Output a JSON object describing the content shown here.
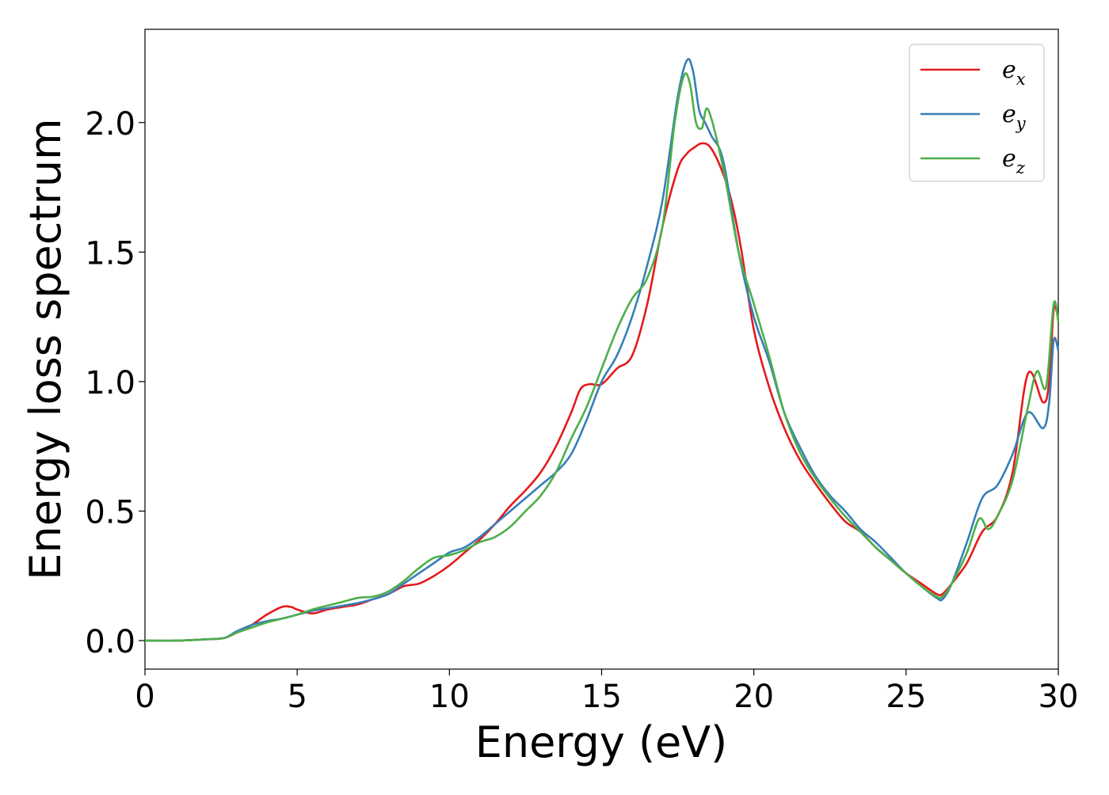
{
  "chart_data": {
    "type": "line",
    "title": "",
    "xlabel": "Energy (eV)",
    "ylabel": "Energy loss spectrum",
    "xlim": [
      0,
      30
    ],
    "ylim": [
      -0.11,
      2.36
    ],
    "x_ticks": [
      "0",
      "5",
      "10",
      "15",
      "20",
      "25",
      "30"
    ],
    "y_ticks": [
      "0.0",
      "0.5",
      "1.0",
      "1.5",
      "2.0"
    ],
    "grid": false,
    "legend_position": "top-right",
    "series": [
      {
        "name": "e_x",
        "label_base": "e",
        "label_sub": "x",
        "color": "#e41a1c",
        "x": [
          0,
          1,
          2,
          2.6,
          3,
          3.5,
          4,
          4.5,
          4.8,
          5,
          5.5,
          6,
          6.5,
          7,
          7.5,
          8,
          8.5,
          9,
          9.5,
          10,
          10.5,
          11,
          11.5,
          12,
          12.5,
          13,
          13.5,
          14,
          14.3,
          14.6,
          15,
          15.5,
          16,
          16.5,
          17,
          17.5,
          17.8,
          18,
          18.3,
          18.6,
          19,
          19.3,
          19.6,
          20,
          20.5,
          21,
          21.5,
          22,
          22.5,
          23,
          23.5,
          24,
          24.5,
          25,
          25.5,
          26,
          26.2,
          26.5,
          27,
          27.5,
          28,
          28.5,
          29,
          29.5,
          29.7,
          29.85,
          30
        ],
        "values": [
          0,
          0,
          0.005,
          0.01,
          0.03,
          0.06,
          0.1,
          0.13,
          0.13,
          0.12,
          0.105,
          0.12,
          0.13,
          0.14,
          0.16,
          0.18,
          0.21,
          0.22,
          0.25,
          0.29,
          0.34,
          0.39,
          0.45,
          0.52,
          0.58,
          0.65,
          0.75,
          0.88,
          0.97,
          0.99,
          0.99,
          1.05,
          1.1,
          1.3,
          1.6,
          1.82,
          1.88,
          1.9,
          1.92,
          1.9,
          1.8,
          1.68,
          1.5,
          1.2,
          0.98,
          0.82,
          0.7,
          0.61,
          0.53,
          0.46,
          0.42,
          0.36,
          0.31,
          0.26,
          0.22,
          0.18,
          0.18,
          0.22,
          0.3,
          0.42,
          0.48,
          0.65,
          1.03,
          0.92,
          1.0,
          1.28,
          1.24
        ]
      },
      {
        "name": "e_y",
        "label_base": "e",
        "label_sub": "y",
        "color": "#377eb8",
        "x": [
          0,
          1,
          2,
          2.6,
          3,
          3.5,
          4,
          4.5,
          5,
          5.5,
          6,
          6.5,
          7,
          7.5,
          8,
          8.5,
          9,
          9.5,
          10,
          10.5,
          11,
          11.5,
          12,
          12.5,
          13,
          13.5,
          14,
          14.5,
          15,
          15.5,
          16,
          16.5,
          17,
          17.5,
          17.8,
          18,
          18.2,
          18.4,
          18.6,
          19,
          19.5,
          20,
          20.5,
          21,
          21.5,
          22,
          22.5,
          23,
          23.5,
          24,
          24.5,
          25,
          25.5,
          26,
          26.2,
          26.5,
          27,
          27.5,
          28,
          28.5,
          29,
          29.5,
          29.7,
          29.85,
          30
        ],
        "values": [
          0,
          0,
          0.005,
          0.01,
          0.035,
          0.06,
          0.075,
          0.085,
          0.1,
          0.115,
          0.125,
          0.135,
          0.145,
          0.16,
          0.18,
          0.22,
          0.26,
          0.3,
          0.34,
          0.36,
          0.4,
          0.45,
          0.5,
          0.55,
          0.6,
          0.65,
          0.72,
          0.85,
          1.0,
          1.1,
          1.25,
          1.45,
          1.7,
          2.1,
          2.24,
          2.2,
          2.05,
          2.0,
          1.95,
          1.85,
          1.5,
          1.25,
          1.08,
          0.88,
          0.75,
          0.64,
          0.56,
          0.5,
          0.43,
          0.38,
          0.32,
          0.26,
          0.21,
          0.165,
          0.16,
          0.22,
          0.38,
          0.55,
          0.6,
          0.72,
          0.88,
          0.82,
          0.92,
          1.16,
          1.12
        ]
      },
      {
        "name": "e_z",
        "label_base": "e",
        "label_sub": "z",
        "color": "#4daf4a",
        "x": [
          0,
          1,
          2,
          2.6,
          3,
          3.5,
          4,
          4.5,
          5,
          5.5,
          6,
          6.5,
          7,
          7.5,
          8,
          8.5,
          9,
          9.5,
          10,
          10.5,
          11,
          11.5,
          12,
          12.5,
          13,
          13.5,
          14,
          14.5,
          15,
          15.5,
          16,
          16.5,
          17,
          17.4,
          17.7,
          17.9,
          18.1,
          18.3,
          18.5,
          19,
          19.5,
          20,
          20.5,
          21,
          21.5,
          22,
          22.5,
          23,
          23.5,
          24,
          24.5,
          25,
          25.5,
          26,
          26.2,
          26.5,
          27,
          27.4,
          27.7,
          28,
          28.5,
          29,
          29.3,
          29.6,
          29.85,
          30
        ],
        "values": [
          0,
          0,
          0.005,
          0.01,
          0.03,
          0.05,
          0.07,
          0.085,
          0.1,
          0.12,
          0.135,
          0.15,
          0.165,
          0.17,
          0.19,
          0.23,
          0.28,
          0.32,
          0.33,
          0.35,
          0.38,
          0.4,
          0.44,
          0.5,
          0.56,
          0.65,
          0.78,
          0.9,
          1.05,
          1.2,
          1.32,
          1.4,
          1.6,
          2.0,
          2.18,
          2.15,
          2.0,
          1.98,
          2.05,
          1.82,
          1.5,
          1.3,
          1.1,
          0.88,
          0.73,
          0.63,
          0.55,
          0.48,
          0.42,
          0.36,
          0.31,
          0.26,
          0.21,
          0.17,
          0.17,
          0.22,
          0.34,
          0.47,
          0.43,
          0.48,
          0.62,
          0.9,
          1.04,
          0.98,
          1.3,
          1.23
        ]
      }
    ]
  }
}
